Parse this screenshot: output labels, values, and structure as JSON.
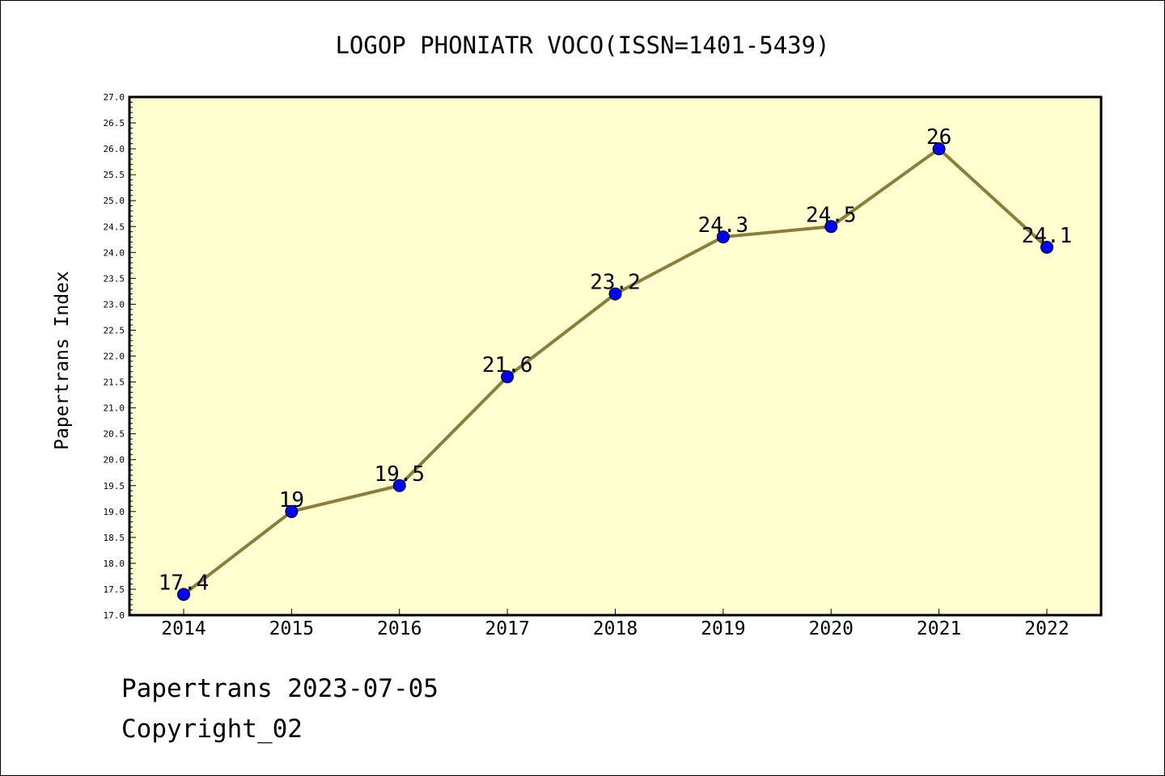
{
  "title": "LOGOP PHONIATR VOCO(ISSN=1401-5439)",
  "footer": {
    "line1": "Papertrans 2023-07-05",
    "line2": "Copyright_02"
  },
  "chart_data": {
    "type": "line",
    "title": "LOGOP PHONIATR VOCO(ISSN=1401-5439)",
    "xlabel": "",
    "ylabel": "Papertrans Index",
    "categories": [
      "2014",
      "2015",
      "2016",
      "2017",
      "2018",
      "2019",
      "2020",
      "2021",
      "2022"
    ],
    "values": [
      17.4,
      19,
      19.5,
      21.6,
      23.2,
      24.3,
      24.5,
      26,
      24.1
    ],
    "data_labels": [
      "17.4",
      "19",
      "19.5",
      "21.6",
      "23.2",
      "24.3",
      "24.5",
      "26",
      "24.1"
    ],
    "ylim": [
      17.0,
      27.0
    ],
    "yticks": [
      "17.0",
      "17.5",
      "18.0",
      "18.5",
      "19.0",
      "19.5",
      "20.0",
      "20.5",
      "21.0",
      "21.5",
      "22.0",
      "22.5",
      "23.0",
      "23.5",
      "24.0",
      "24.5",
      "25.0",
      "25.5",
      "26.0",
      "26.5",
      "27.0"
    ],
    "grid": false,
    "colors": {
      "plot_background": "#ffffd0",
      "line": "#8b7d3a",
      "marker": "#0000ff"
    }
  }
}
